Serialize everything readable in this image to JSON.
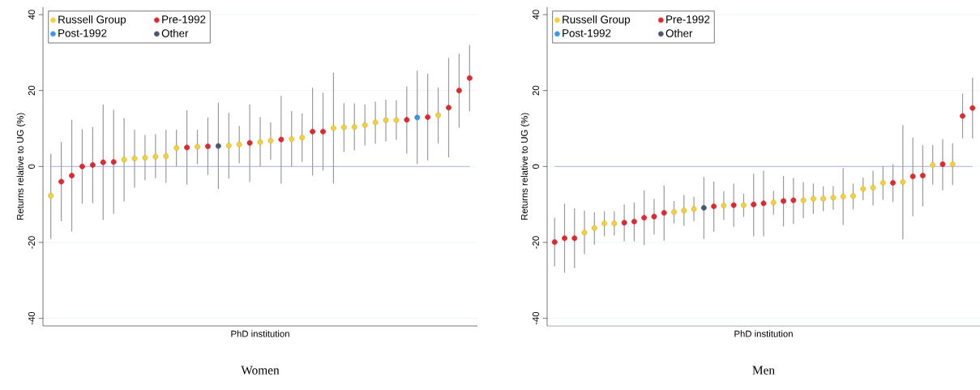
{
  "chart_data": [
    {
      "type": "scatter",
      "title": "Women",
      "xlabel": "PhD institution",
      "ylabel": "Returns relative to UG (%)",
      "categories": [
        null,
        null,
        null,
        null,
        null,
        null,
        null,
        null,
        null,
        null,
        null,
        null,
        null,
        null,
        null,
        null,
        null,
        null,
        null,
        null,
        null,
        null,
        null,
        null,
        null,
        null,
        null,
        null,
        null,
        null,
        null,
        null,
        null,
        null,
        null,
        null,
        null,
        null,
        null,
        null,
        null
      ],
      "series": [
        {
          "name": "Russell Group",
          "color": "#f5d133",
          "values": [
            -7.7,
            null,
            null,
            null,
            null,
            null,
            null,
            1.8,
            2.1,
            2.3,
            2.6,
            2.7,
            4.9,
            null,
            5.2,
            null,
            null,
            5.5,
            5.8,
            null,
            6.4,
            6.8,
            null,
            7.2,
            7.6,
            null,
            null,
            10.1,
            10.3,
            10.4,
            10.9,
            11.6,
            12.2,
            12.2,
            null,
            null,
            null,
            13.5,
            null,
            null,
            null
          ],
          "errors": [
            [
              -19.1,
              3.4
            ],
            null,
            null,
            null,
            null,
            null,
            null,
            [
              -9.2,
              12.8
            ],
            [
              -5.6,
              9.7
            ],
            [
              -3.6,
              8.3
            ],
            [
              -3.1,
              8.5
            ],
            [
              -4.3,
              9.7
            ],
            [
              0,
              9.7
            ],
            null,
            [
              0.6,
              9.7
            ],
            null,
            null,
            [
              -3.2,
              14.1
            ],
            [
              0.8,
              10.7
            ],
            null,
            [
              0,
              13.0
            ],
            [
              1.8,
              11.6
            ],
            null,
            [
              0,
              14.6
            ],
            [
              1.2,
              14.0
            ],
            null,
            null,
            [
              -4.5,
              24.7
            ],
            [
              3.8,
              16.7
            ],
            [
              4.3,
              16.6
            ],
            [
              5.5,
              16.3
            ],
            [
              6.0,
              17.1
            ],
            [
              6.6,
              17.6
            ],
            [
              7.0,
              17.4
            ],
            null,
            null,
            null,
            [
              6.1,
              20.8
            ],
            null,
            null,
            null
          ]
        },
        {
          "name": "Pre-1992",
          "color": "#e8252d",
          "values": [
            null,
            -4.0,
            -2.4,
            0.0,
            0.4,
            1.1,
            1.2,
            null,
            null,
            null,
            null,
            null,
            null,
            5.0,
            null,
            5.3,
            null,
            null,
            null,
            6.2,
            null,
            null,
            7.1,
            null,
            null,
            9.2,
            9.2,
            null,
            null,
            null,
            null,
            null,
            null,
            null,
            12.3,
            null,
            13.0,
            null,
            15.5,
            20.0,
            23.3
          ],
          "errors": [
            null,
            [
              -14.4,
              6.4
            ],
            [
              -17.1,
              12.3
            ],
            [
              -9.8,
              9.8
            ],
            [
              -9.7,
              10.4
            ],
            [
              -14.1,
              16.3
            ],
            [
              -12.5,
              14.9
            ],
            null,
            null,
            null,
            null,
            null,
            null,
            [
              -4.8,
              14.8
            ],
            null,
            [
              -2.2,
              12.9
            ],
            null,
            null,
            null,
            [
              -4.1,
              16.3
            ],
            null,
            null,
            [
              -4.5,
              18.6
            ],
            null,
            null,
            [
              -2.4,
              20.7
            ],
            [
              -1.1,
              19.4
            ],
            null,
            null,
            null,
            null,
            null,
            null,
            null,
            [
              3.4,
              21.1
            ],
            null,
            [
              1.6,
              24.4
            ],
            null,
            [
              2.4,
              28.6
            ],
            [
              10.2,
              29.7
            ],
            [
              14.6,
              32.0
            ]
          ]
        },
        {
          "name": "Post-1992",
          "color": "#3a96ee",
          "values": [
            null,
            null,
            null,
            null,
            null,
            null,
            null,
            null,
            null,
            null,
            null,
            null,
            null,
            null,
            null,
            null,
            null,
            null,
            null,
            null,
            null,
            null,
            null,
            null,
            null,
            null,
            null,
            null,
            null,
            null,
            null,
            null,
            null,
            null,
            null,
            12.9,
            null,
            null,
            null,
            null,
            null
          ],
          "errors": [
            null,
            null,
            null,
            null,
            null,
            null,
            null,
            null,
            null,
            null,
            null,
            null,
            null,
            null,
            null,
            null,
            null,
            null,
            null,
            null,
            null,
            null,
            null,
            null,
            null,
            null,
            null,
            null,
            null,
            null,
            null,
            null,
            null,
            null,
            null,
            [
              0.6,
              25.2
            ],
            null,
            null,
            null,
            null,
            null
          ]
        },
        {
          "name": "Other",
          "color": "#4d5670",
          "values": [
            null,
            null,
            null,
            null,
            null,
            null,
            null,
            null,
            null,
            null,
            null,
            null,
            null,
            null,
            null,
            null,
            5.4,
            null,
            null,
            null,
            null,
            null,
            null,
            null,
            null,
            null,
            null,
            null,
            null,
            null,
            null,
            null,
            null,
            null,
            null,
            null,
            null,
            null,
            null,
            null,
            null
          ],
          "errors": [
            null,
            null,
            null,
            null,
            null,
            null,
            null,
            null,
            null,
            null,
            null,
            null,
            null,
            null,
            null,
            null,
            [
              -5.9,
              16.8
            ],
            null,
            null,
            null,
            null,
            null,
            null,
            null,
            null,
            null,
            null,
            null,
            null,
            null,
            null,
            null,
            null,
            null,
            null,
            null,
            null,
            null,
            null,
            null,
            null
          ]
        }
      ],
      "ylim": [
        -42,
        42
      ],
      "yticks": [
        -40,
        -20,
        0,
        20,
        40
      ],
      "grid": "y",
      "legend": "top left",
      "marker": "circle",
      "tick_labels": "y",
      "ref_lines": [
        {
          "axis": "y",
          "value": 0,
          "color": "#8c8cf5"
        }
      ]
    },
    {
      "type": "scatter",
      "title": "Men",
      "xlabel": "PhD institution",
      "ylabel": "Returns relative to UG (%)",
      "categories": [
        null,
        null,
        null,
        null,
        null,
        null,
        null,
        null,
        null,
        null,
        null,
        null,
        null,
        null,
        null,
        null,
        null,
        null,
        null,
        null,
        null,
        null,
        null,
        null,
        null,
        null,
        null,
        null,
        null,
        null,
        null,
        null,
        null,
        null,
        null,
        null,
        null,
        null,
        null,
        null,
        null,
        null,
        null
      ],
      "series": [
        {
          "name": "Russell Group",
          "color": "#f5d133",
          "values": [
            null,
            null,
            null,
            -17.4,
            -16.2,
            -15.0,
            -15.0,
            null,
            null,
            null,
            null,
            null,
            -12.0,
            -11.6,
            -11.2,
            null,
            null,
            -10.3,
            null,
            -10.2,
            null,
            null,
            -9.5,
            null,
            null,
            -8.9,
            -8.5,
            -8.5,
            -8.2,
            -7.9,
            -7.8,
            -5.9,
            -5.6,
            -4.3,
            null,
            -4.1,
            null,
            null,
            0.4,
            null,
            0.6,
            null,
            null
          ],
          "errors": [
            null,
            null,
            null,
            [
              -23.1,
              -11.7
            ],
            [
              -20.6,
              -12.1
            ],
            [
              -18.4,
              -11.8
            ],
            [
              -18.2,
              -11.8
            ],
            null,
            null,
            null,
            null,
            null,
            [
              -15.0,
              -9.1
            ],
            [
              -15.7,
              -7.5
            ],
            [
              -14.4,
              -8.0
            ],
            null,
            null,
            [
              -14.1,
              -6.5
            ],
            null,
            [
              -13.3,
              -7.2
            ],
            null,
            null,
            [
              -12.7,
              -6.4
            ],
            null,
            null,
            [
              -13.6,
              -4.1
            ],
            [
              -12.5,
              -4.5
            ],
            [
              -11.8,
              -5.2
            ],
            [
              -11.4,
              -5.1
            ],
            [
              -15.4,
              -0.4
            ],
            [
              -11.3,
              -4.5
            ],
            [
              -8.9,
              -2.9
            ],
            [
              -10.3,
              -1.1
            ],
            [
              -8.8,
              0.1
            ],
            null,
            [
              -19.2,
              10.9
            ],
            null,
            null,
            [
              -4.8,
              5.6
            ],
            null,
            [
              -4.9,
              6.1
            ],
            null,
            null
          ]
        },
        {
          "name": "Pre-1992",
          "color": "#e8252d",
          "values": [
            -19.9,
            -18.9,
            -18.9,
            null,
            null,
            null,
            null,
            -14.8,
            -14.5,
            -13.5,
            -13.2,
            -12.2,
            null,
            null,
            null,
            null,
            -10.5,
            null,
            -10.2,
            null,
            -10.0,
            -9.7,
            null,
            -9.1,
            -8.9,
            null,
            null,
            null,
            null,
            null,
            null,
            null,
            null,
            null,
            -4.3,
            null,
            -2.6,
            -2.4,
            null,
            0.6,
            null,
            13.3,
            15.4
          ],
          "errors": [
            [
              -26.3,
              -13.5
            ],
            [
              -28.0,
              -9.8
            ],
            [
              -26.8,
              -11.0
            ],
            null,
            null,
            null,
            null,
            [
              -19.7,
              -10.0
            ],
            [
              -19.7,
              -9.5
            ],
            [
              -20.7,
              -6.3
            ],
            [
              -17.9,
              -8.5
            ],
            [
              -19.5,
              -5.0
            ],
            null,
            null,
            null,
            null,
            [
              -17.2,
              -4.0
            ],
            null,
            [
              -15.9,
              -4.5
            ],
            null,
            [
              -18.4,
              -1.9
            ],
            [
              -18.4,
              -1.1
            ],
            null,
            [
              -15.8,
              -2.5
            ],
            [
              -15.1,
              -3.0
            ],
            null,
            null,
            null,
            null,
            null,
            null,
            null,
            null,
            null,
            [
              -9.3,
              0.6
            ],
            null,
            [
              -13.1,
              7.6
            ],
            [
              -10.5,
              5.6
            ],
            null,
            [
              -6.3,
              7.2
            ],
            null,
            [
              7.4,
              19.2
            ],
            [
              7.4,
              23.4
            ]
          ]
        },
        {
          "name": "Post-1992",
          "color": "#3a96ee",
          "values": [
            null,
            null,
            null,
            null,
            null,
            null,
            null,
            null,
            null,
            null,
            null,
            null,
            null,
            null,
            null,
            null,
            null,
            null,
            null,
            null,
            null,
            null,
            null,
            null,
            null,
            null,
            null,
            null,
            null,
            null,
            null,
            null,
            null,
            null,
            null,
            null,
            null,
            null,
            null,
            null,
            null,
            null,
            null
          ]
        },
        {
          "name": "Other",
          "color": "#4d5670",
          "values": [
            null,
            null,
            null,
            null,
            null,
            null,
            null,
            null,
            null,
            null,
            null,
            null,
            null,
            null,
            null,
            -10.9,
            null,
            null,
            null,
            null,
            null,
            null,
            null,
            null,
            null,
            null,
            null,
            null,
            null,
            null,
            null,
            null,
            null,
            null,
            null,
            null,
            null,
            null,
            null,
            null,
            null,
            null,
            null
          ],
          "errors": [
            null,
            null,
            null,
            null,
            null,
            null,
            null,
            null,
            null,
            null,
            null,
            null,
            null,
            null,
            null,
            [
              -19.1,
              -2.8
            ],
            null,
            null,
            null,
            null,
            null,
            null,
            null,
            null,
            null,
            null,
            null,
            null,
            null,
            null,
            null,
            null,
            null,
            null,
            null,
            null,
            null,
            null,
            null,
            null,
            null,
            null,
            null
          ]
        }
      ],
      "ylim": [
        -42,
        42
      ],
      "yticks": [
        -40,
        -20,
        0,
        20,
        40
      ],
      "grid": "y",
      "legend": "top left",
      "marker": "circle",
      "tick_labels": "y",
      "ref_lines": [
        {
          "axis": "y",
          "value": 0,
          "color": "#8c8cf5"
        }
      ]
    }
  ]
}
